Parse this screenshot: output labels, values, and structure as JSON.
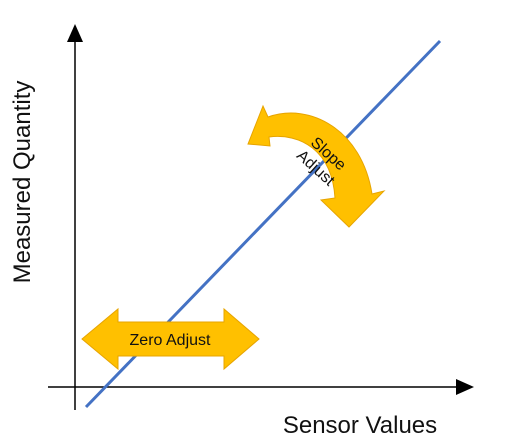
{
  "diagram": {
    "y_axis_label": "Measured Quantity",
    "x_axis_label": "Sensor Values",
    "zero_adjust_label": "Zero Adjust",
    "slope_adjust_label_line1": "Slope",
    "slope_adjust_label_line2": "Adjust"
  },
  "colors": {
    "axis": "#000000",
    "calibration_line": "#4472c4",
    "adjust_arrow_fill": "#ffc000",
    "adjust_arrow_stroke": "#e7a400",
    "text": "#111111"
  }
}
